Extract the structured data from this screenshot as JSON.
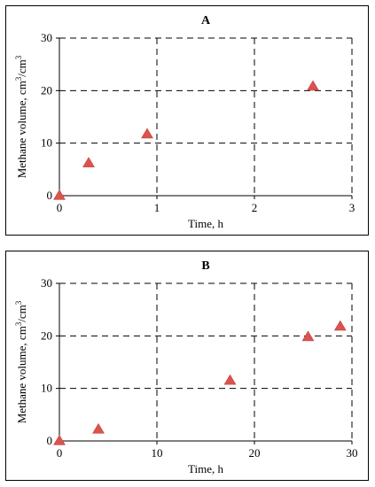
{
  "chart_data": [
    {
      "type": "scatter",
      "title": "A",
      "xlabel": "Time, h",
      "ylabel_main": "Methane volume, cm",
      "ylabel_sup1": "3",
      "ylabel_slash": "/cm",
      "ylabel_sup2": "3",
      "xlim": [
        0,
        3
      ],
      "ylim": [
        0,
        30
      ],
      "xticks": [
        0,
        1,
        2,
        3
      ],
      "yticks": [
        0,
        10,
        20,
        30
      ],
      "grid": "dashed",
      "marker": "triangle",
      "marker_color": "#d9534f",
      "series": [
        {
          "x": [
            0,
            0.3,
            0.9,
            2.6
          ],
          "y": [
            0,
            6.2,
            11.7,
            20.8
          ]
        }
      ]
    },
    {
      "type": "scatter",
      "title": "B",
      "xlabel": "Time, h",
      "ylabel_main": "Methane volume, cm",
      "ylabel_sup1": "3",
      "ylabel_slash": "/cm",
      "ylabel_sup2": "3",
      "xlim": [
        0,
        30
      ],
      "ylim": [
        0,
        30
      ],
      "xticks": [
        0,
        10,
        20,
        30
      ],
      "yticks": [
        0,
        10,
        20,
        30
      ],
      "grid": "dashed",
      "marker": "triangle",
      "marker_color": "#d9534f",
      "series": [
        {
          "x": [
            0,
            4,
            17.5,
            25.5,
            28.8
          ],
          "y": [
            0,
            2.2,
            11.5,
            19.8,
            21.8
          ]
        }
      ]
    }
  ]
}
